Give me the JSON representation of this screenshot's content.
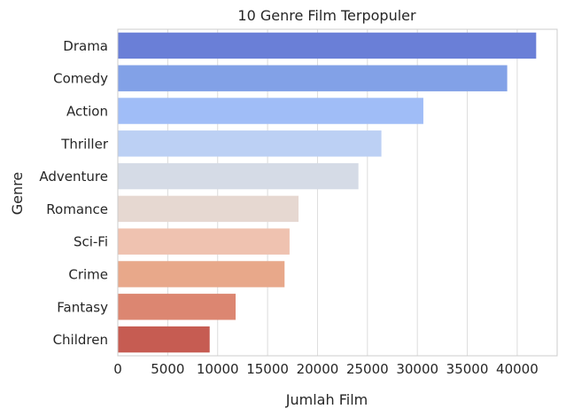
{
  "chart_data": {
    "type": "bar",
    "orientation": "horizontal",
    "title": "10 Genre Film Terpopuler",
    "xlabel": "Jumlah Film",
    "ylabel": "Genre",
    "xlim": [
      0,
      44000
    ],
    "grid": "vertical",
    "categories": [
      "Drama",
      "Comedy",
      "Action",
      "Thriller",
      "Adventure",
      "Romance",
      "Sci-Fi",
      "Crime",
      "Fantasy",
      "Children"
    ],
    "values": [
      41900,
      39000,
      30600,
      26400,
      24100,
      18100,
      17200,
      16700,
      11800,
      9200
    ],
    "x_ticks": [
      0,
      5000,
      10000,
      15000,
      20000,
      25000,
      30000,
      35000,
      40000
    ],
    "x_tick_labels": [
      "0",
      "5000",
      "10000",
      "15000",
      "20000",
      "25000",
      "30000",
      "35000",
      "40000"
    ],
    "colors": [
      "#6a7fd7",
      "#82a1e7",
      "#a0bdf7",
      "#bcd0f4",
      "#d5dbe6",
      "#e6d8d1",
      "#efc2b0",
      "#e8a88a",
      "#dc8671",
      "#c65c52"
    ]
  }
}
